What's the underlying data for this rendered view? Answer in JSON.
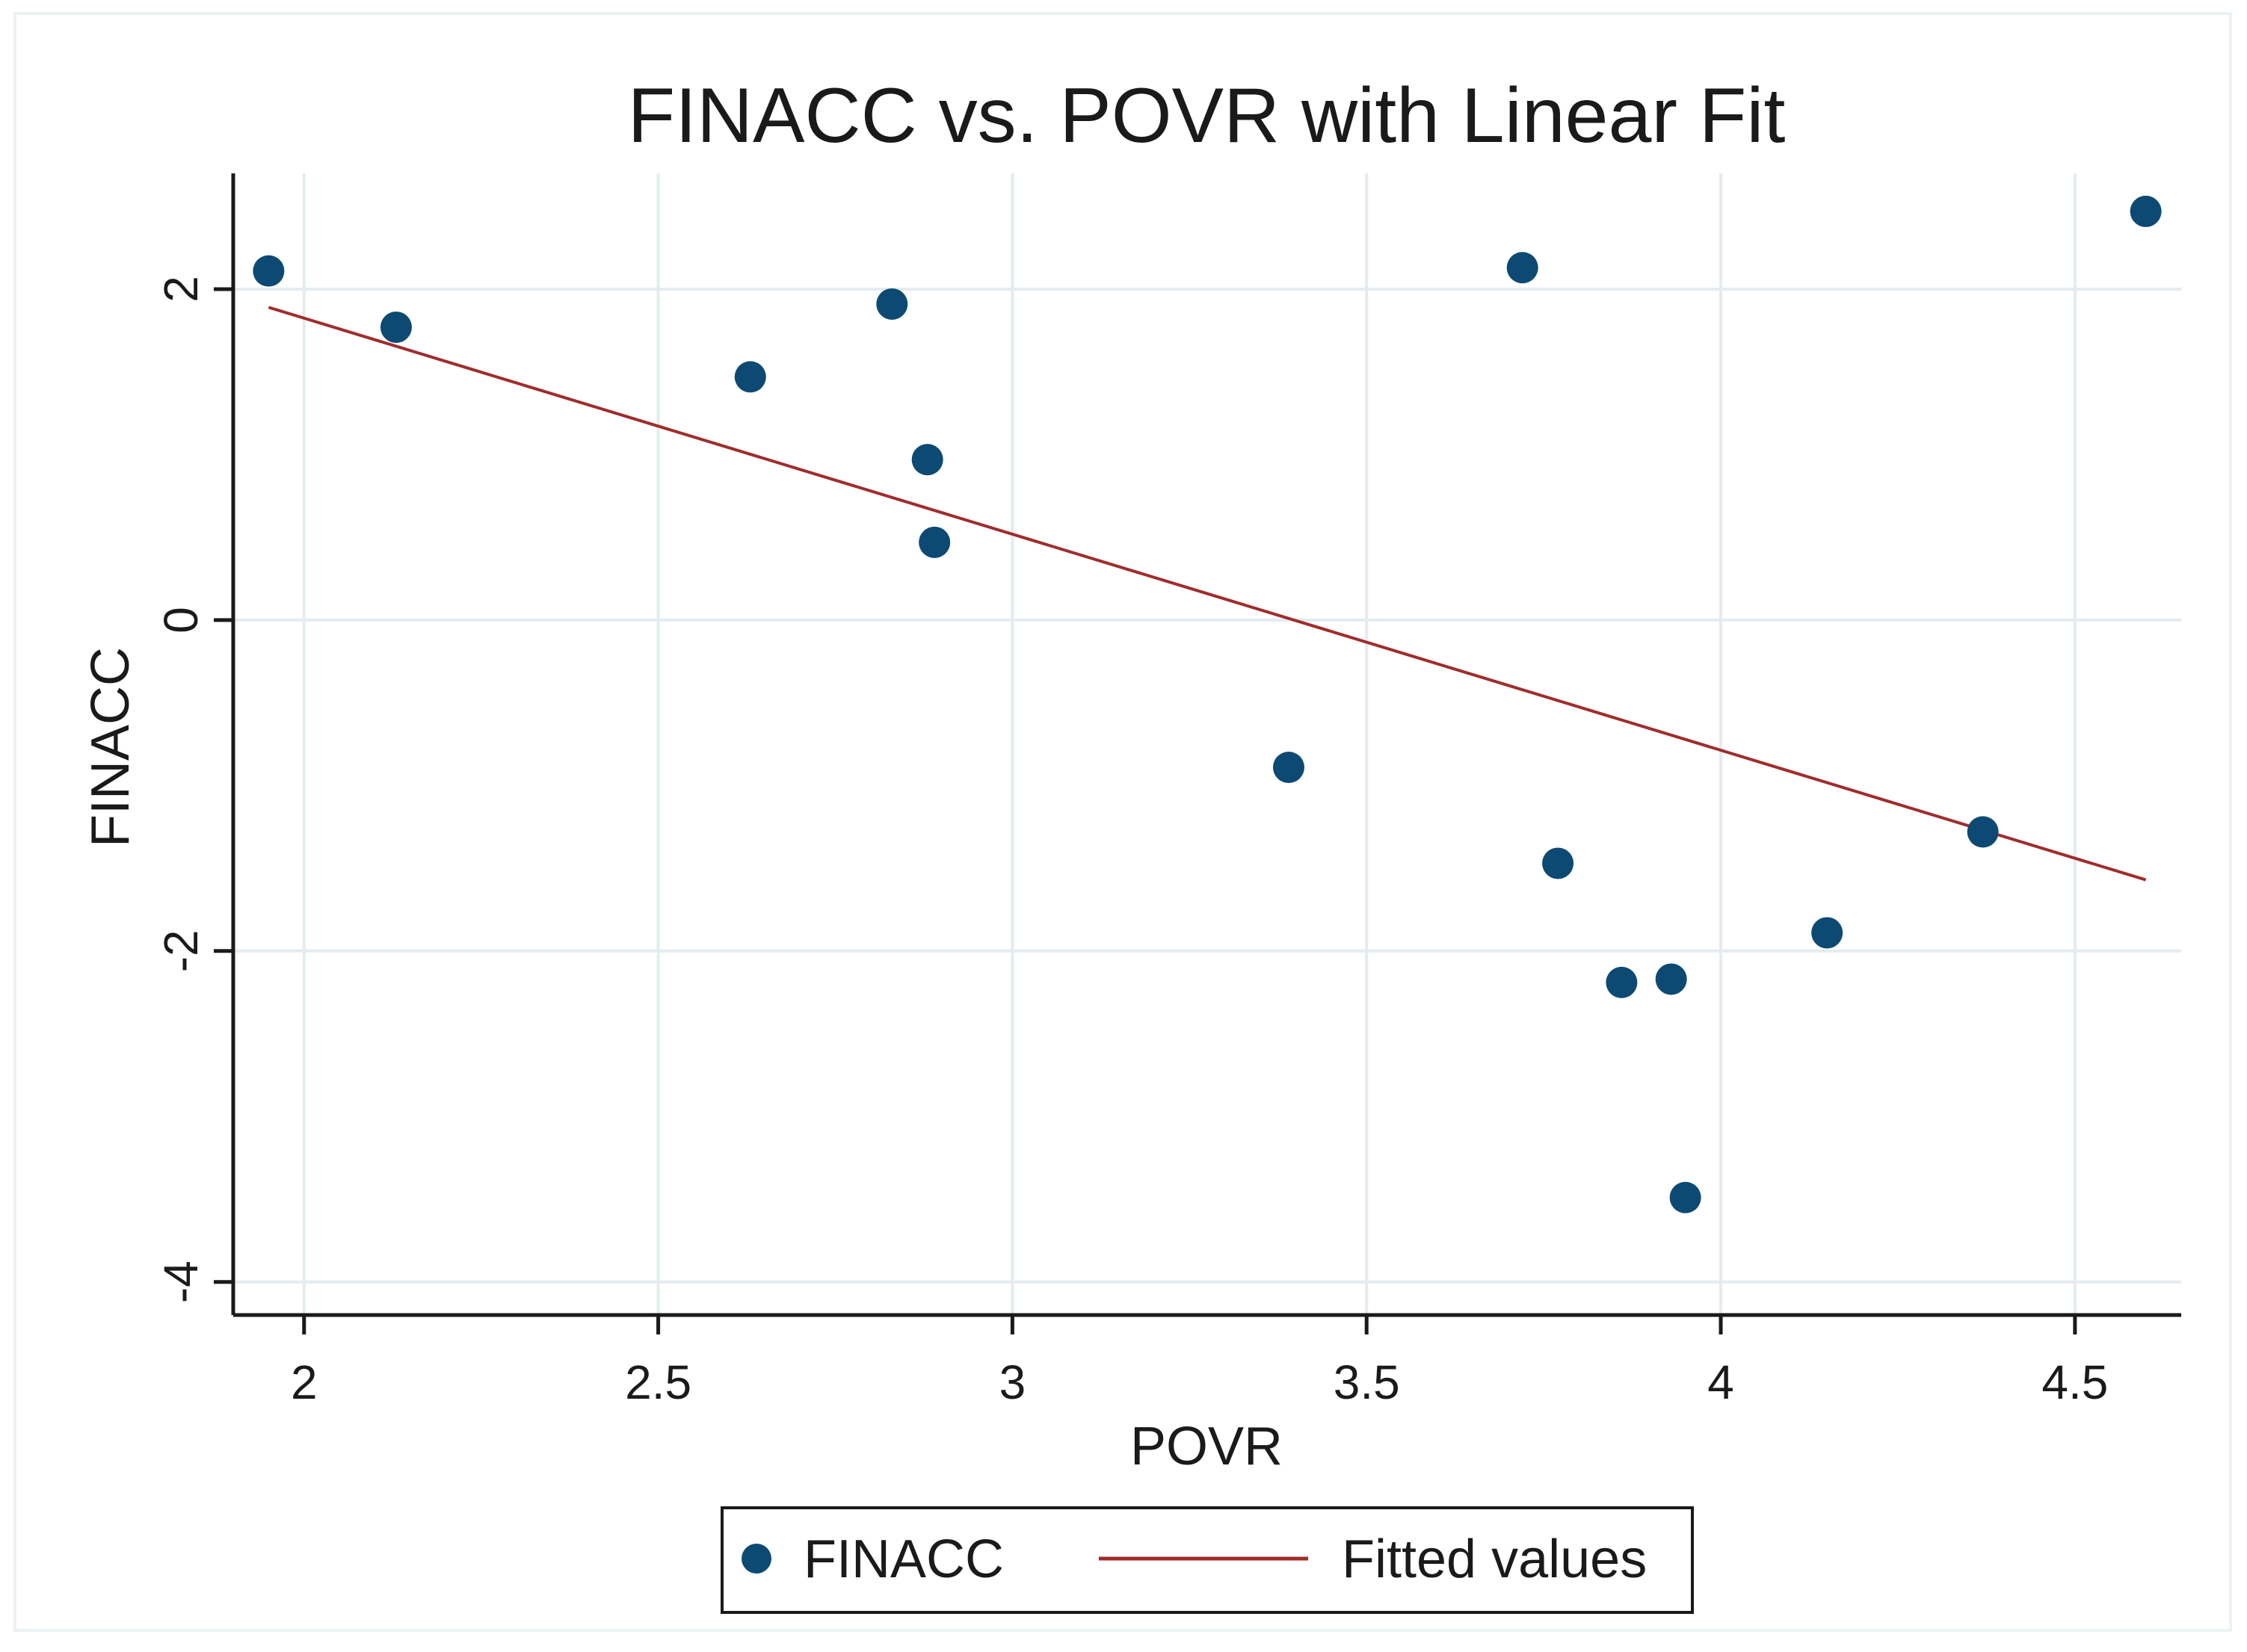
{
  "chart_data": {
    "type": "scatter",
    "title": "FINACC vs. POVR with Linear Fit",
    "xlabel": "POVR",
    "ylabel": "FINACC",
    "xlim": [
      1.9,
      4.65
    ],
    "ylim": [
      -4.2,
      2.7
    ],
    "xticks": [
      2,
      2.5,
      3,
      3.5,
      4,
      4.5
    ],
    "xtick_labels": [
      "2",
      "2.5",
      "3",
      "3.5",
      "4",
      "4.5"
    ],
    "yticks": [
      -4,
      -2,
      0,
      2
    ],
    "ytick_labels": [
      "-4",
      "-2",
      "0",
      "2"
    ],
    "grid": true,
    "series": [
      {
        "name": "FINACC",
        "kind": "scatter",
        "color": "#0d4a73",
        "points": [
          {
            "x": 1.95,
            "y": 2.11
          },
          {
            "x": 2.13,
            "y": 1.77
          },
          {
            "x": 2.63,
            "y": 1.47
          },
          {
            "x": 2.83,
            "y": 1.91
          },
          {
            "x": 2.88,
            "y": 0.97
          },
          {
            "x": 2.89,
            "y": 0.47
          },
          {
            "x": 3.39,
            "y": -0.89
          },
          {
            "x": 3.72,
            "y": 2.13
          },
          {
            "x": 3.77,
            "y": -1.47
          },
          {
            "x": 3.86,
            "y": -2.19
          },
          {
            "x": 3.93,
            "y": -2.17
          },
          {
            "x": 3.95,
            "y": -3.49
          },
          {
            "x": 4.15,
            "y": -1.89
          },
          {
            "x": 4.37,
            "y": -1.28
          },
          {
            "x": 4.6,
            "y": 2.47
          }
        ]
      },
      {
        "name": "Fitted values",
        "kind": "line",
        "color": "#a02c2c",
        "points": [
          {
            "x": 1.95,
            "y": 1.89
          },
          {
            "x": 4.6,
            "y": -1.57
          }
        ]
      }
    ],
    "legend": {
      "position": "bottom",
      "entries": [
        "FINACC",
        "Fitted values"
      ]
    },
    "colors": {
      "axis": "#1a1a1a",
      "grid": "#e3ecef",
      "frame": "#eaf2f3"
    }
  }
}
